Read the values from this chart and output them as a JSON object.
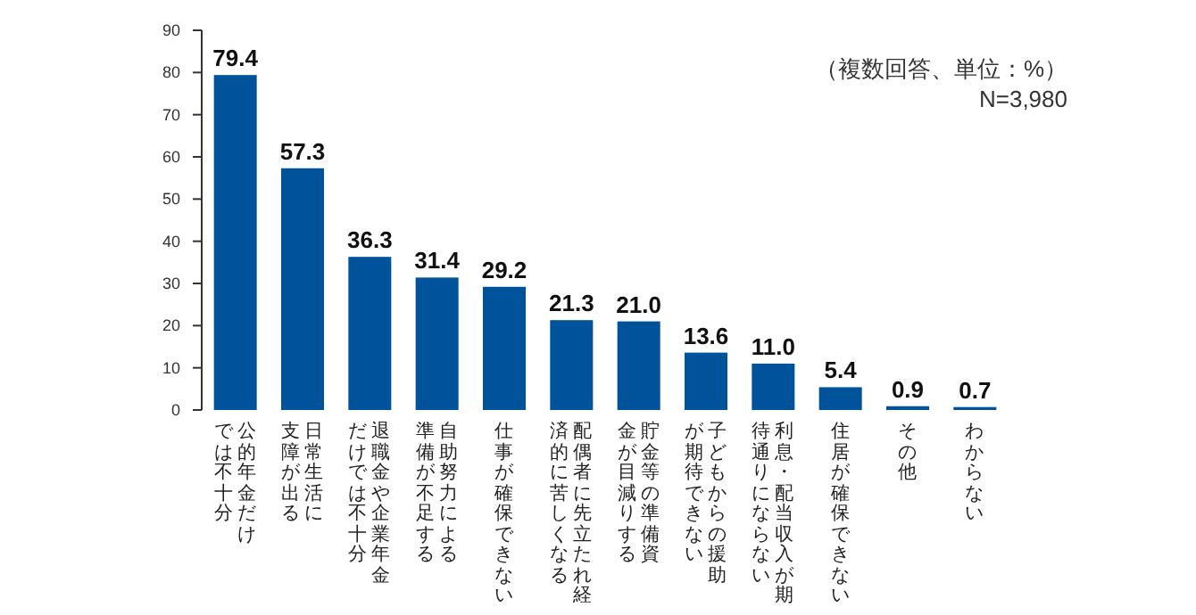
{
  "chart_data": {
    "type": "bar",
    "categories": [
      "公的年金だけでは不十分",
      "日常生活に支障が出る",
      "退職金や企業年金だけでは不十分",
      "自助努力による準備が不足する",
      "仕事が確保できない",
      "配偶者に先立たれ経済的に苦しくなる",
      "貯金等の準備資金が目減りする",
      "子どもからの援助が期待できない",
      "利息・配当収入が期待通りにならない",
      "住居が確保できない",
      "その他",
      "わからない"
    ],
    "values": [
      79.4,
      57.3,
      36.3,
      31.4,
      29.2,
      21.3,
      21.0,
      13.6,
      11.0,
      5.4,
      0.9,
      0.7
    ],
    "value_labels": [
      "79.4",
      "57.3",
      "36.3",
      "31.4",
      "29.2",
      "21.3",
      "21.0",
      "13.6",
      "11.0",
      "5.4",
      "0.9",
      "0.7"
    ],
    "color": "#00529b",
    "ylim": [
      0,
      90
    ],
    "yticks": [
      0,
      10,
      20,
      30,
      40,
      50,
      60,
      70,
      80,
      90
    ],
    "annotations": [
      "（複数回答、単位：%）",
      "N=3,980"
    ]
  }
}
